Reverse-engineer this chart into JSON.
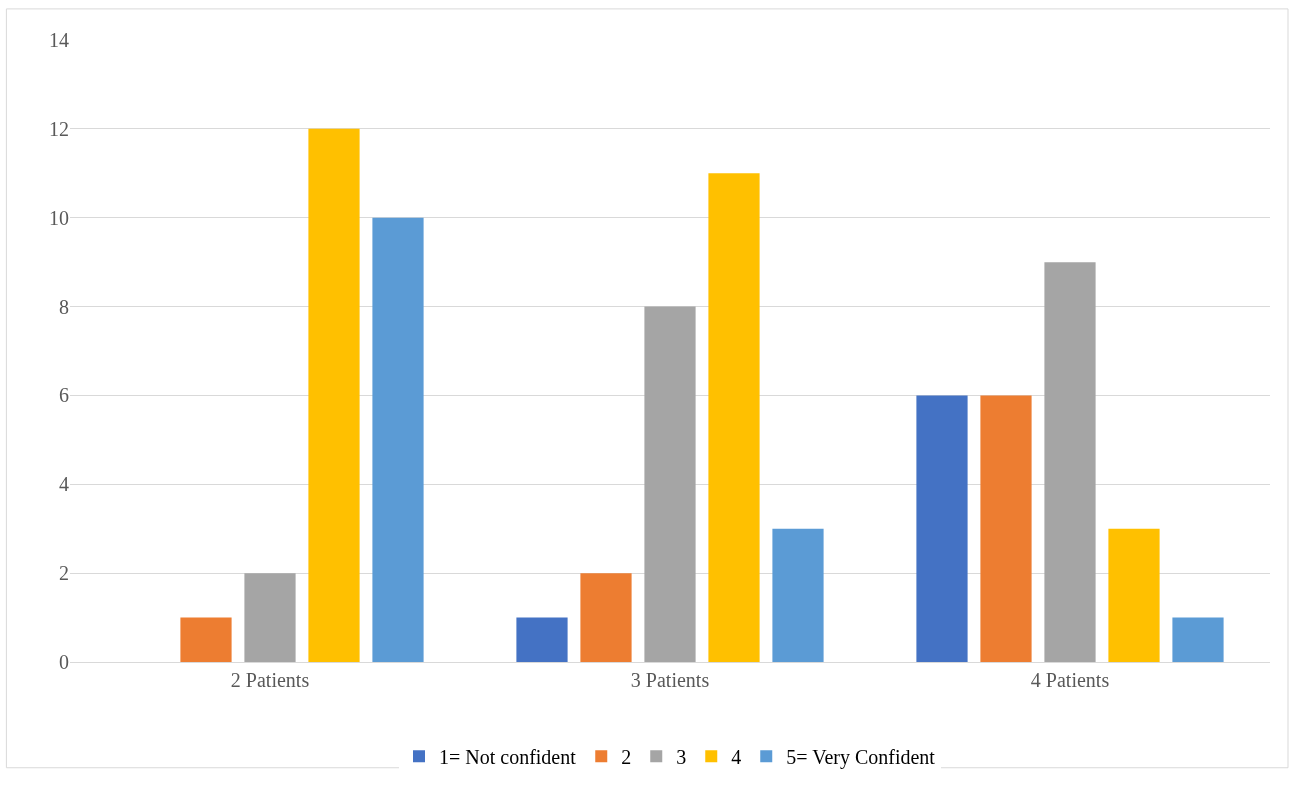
{
  "chart_data": {
    "type": "bar",
    "categories": [
      "2 Patients",
      "3 Patients",
      "4 Patients"
    ],
    "series": [
      {
        "name": "1= Not confident",
        "color": "#4472c4",
        "values": [
          0,
          1,
          6
        ]
      },
      {
        "name": "2",
        "color": "#ed7d31",
        "values": [
          1,
          2,
          6
        ]
      },
      {
        "name": "3",
        "color": "#a5a5a5",
        "values": [
          2,
          8,
          9
        ]
      },
      {
        "name": "4",
        "color": "#ffc000",
        "values": [
          12,
          11,
          3
        ]
      },
      {
        "name": "5= Very Confident",
        "color": "#5b9bd5",
        "values": [
          10,
          3,
          1
        ]
      }
    ],
    "ylim": [
      0,
      14
    ],
    "yticks": [
      0,
      2,
      4,
      6,
      8,
      10,
      12,
      14
    ],
    "grid": "y",
    "legend": "bottom"
  }
}
